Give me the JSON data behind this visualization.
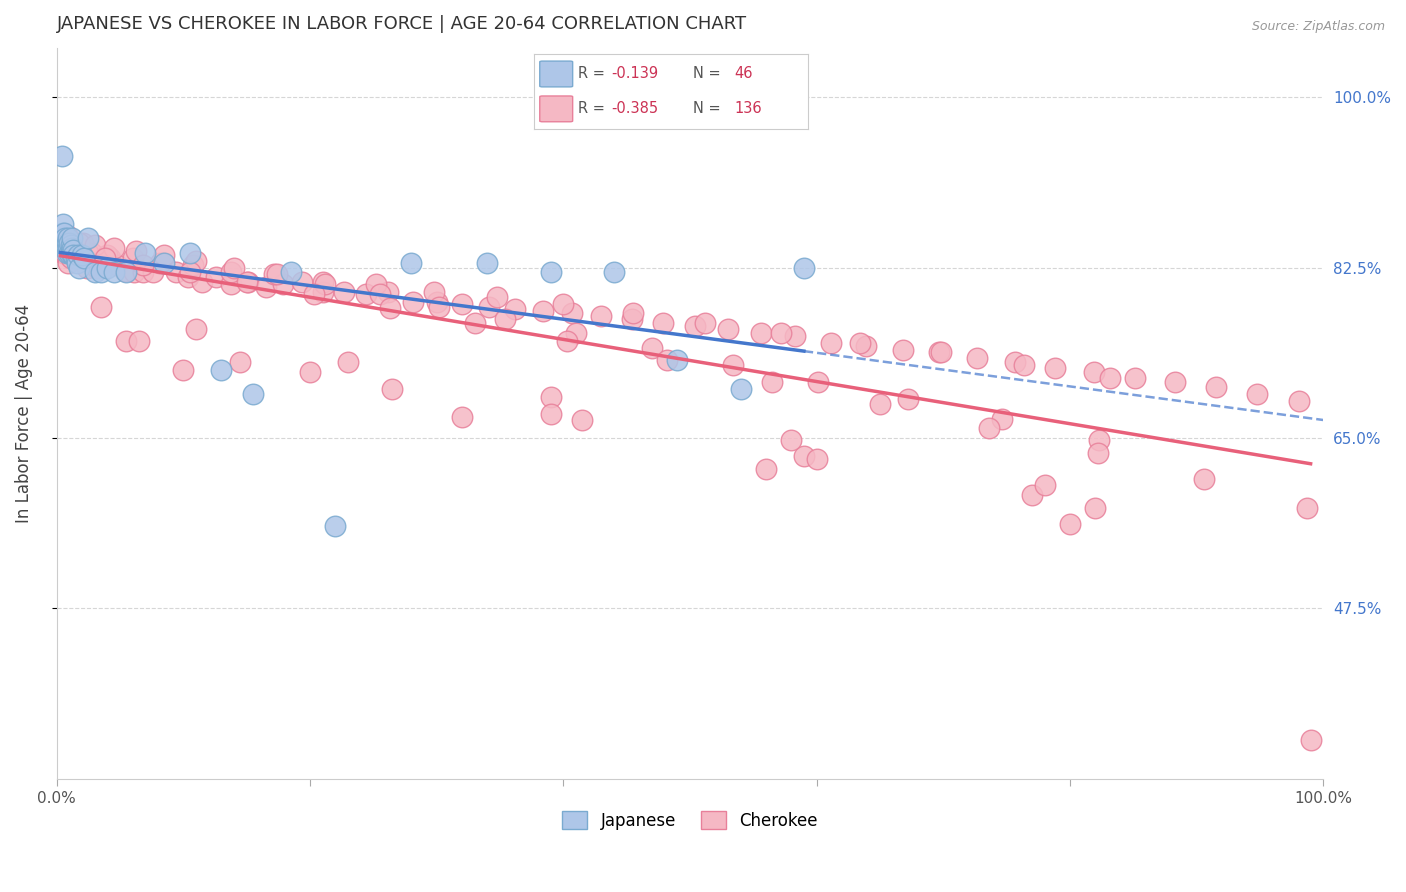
{
  "title": "JAPANESE VS CHEROKEE IN LABOR FORCE | AGE 20-64 CORRELATION CHART",
  "source": "Source: ZipAtlas.com",
  "ylabel": "In Labor Force | Age 20-64",
  "xlim": [
    0.0,
    1.0
  ],
  "ylim": [
    0.3,
    1.05
  ],
  "ytick_positions": [
    0.475,
    0.65,
    0.825,
    1.0
  ],
  "ytick_labels": [
    "47.5%",
    "65.0%",
    "82.5%",
    "100.0%"
  ],
  "background_color": "#ffffff",
  "grid_color": "#cccccc",
  "title_color": "#333333",
  "axis_label_color": "#444444",
  "tick_label_color_right": "#4477cc",
  "japanese_color": "#aec6e8",
  "cherokee_color": "#f5b8c4",
  "japanese_edge": "#7aaad0",
  "cherokee_edge": "#e8809a",
  "japanese_line_color": "#4477cc",
  "cherokee_line_color": "#e8607a",
  "japanese_x": [
    0.003,
    0.004,
    0.005,
    0.005,
    0.006,
    0.006,
    0.007,
    0.007,
    0.008,
    0.008,
    0.009,
    0.009,
    0.01,
    0.01,
    0.011,
    0.011,
    0.012,
    0.012,
    0.013,
    0.013,
    0.015,
    0.016,
    0.017,
    0.018,
    0.02,
    0.022,
    0.025,
    0.03,
    0.035,
    0.04,
    0.045,
    0.055,
    0.07,
    0.085,
    0.105,
    0.13,
    0.155,
    0.185,
    0.22,
    0.28,
    0.34,
    0.39,
    0.44,
    0.49,
    0.54,
    0.59
  ],
  "japanese_y": [
    0.855,
    0.94,
    0.86,
    0.87,
    0.85,
    0.86,
    0.845,
    0.855,
    0.84,
    0.85,
    0.845,
    0.855,
    0.84,
    0.85,
    0.848,
    0.84,
    0.845,
    0.855,
    0.843,
    0.838,
    0.835,
    0.83,
    0.838,
    0.825,
    0.838,
    0.835,
    0.855,
    0.82,
    0.82,
    0.825,
    0.82,
    0.82,
    0.84,
    0.83,
    0.84,
    0.72,
    0.695,
    0.82,
    0.56,
    0.83,
    0.83,
    0.82,
    0.82,
    0.73,
    0.7,
    0.825
  ],
  "cherokee_x": [
    0.003,
    0.005,
    0.007,
    0.009,
    0.011,
    0.013,
    0.015,
    0.018,
    0.021,
    0.024,
    0.028,
    0.032,
    0.037,
    0.042,
    0.048,
    0.054,
    0.061,
    0.068,
    0.076,
    0.085,
    0.094,
    0.104,
    0.115,
    0.126,
    0.138,
    0.151,
    0.165,
    0.179,
    0.194,
    0.21,
    0.227,
    0.244,
    0.262,
    0.281,
    0.3,
    0.32,
    0.341,
    0.362,
    0.384,
    0.407,
    0.43,
    0.454,
    0.479,
    0.504,
    0.53,
    0.556,
    0.583,
    0.611,
    0.639,
    0.668,
    0.697,
    0.727,
    0.757,
    0.788,
    0.819,
    0.851,
    0.883,
    0.915,
    0.948,
    0.981,
    0.012,
    0.025,
    0.04,
    0.06,
    0.082,
    0.108,
    0.138,
    0.172,
    0.21,
    0.252,
    0.298,
    0.348,
    0.4,
    0.455,
    0.512,
    0.572,
    0.634,
    0.698,
    0.764,
    0.832,
    0.008,
    0.018,
    0.03,
    0.045,
    0.063,
    0.085,
    0.11,
    0.14,
    0.174,
    0.212,
    0.255,
    0.302,
    0.354,
    0.41,
    0.47,
    0.534,
    0.601,
    0.672,
    0.746,
    0.823,
    0.015,
    0.038,
    0.068,
    0.105,
    0.15,
    0.203,
    0.263,
    0.33,
    0.403,
    0.482,
    0.565,
    0.65,
    0.736,
    0.822,
    0.906,
    0.987,
    0.055,
    0.145,
    0.265,
    0.415,
    0.59,
    0.77,
    0.035,
    0.11,
    0.23,
    0.39,
    0.58,
    0.78,
    0.065,
    0.2,
    0.39,
    0.6,
    0.82,
    0.1,
    0.32,
    0.56,
    0.8,
    0.99
  ],
  "cherokee_y": [
    0.855,
    0.84,
    0.84,
    0.83,
    0.835,
    0.84,
    0.835,
    0.84,
    0.85,
    0.825,
    0.84,
    0.825,
    0.83,
    0.835,
    0.828,
    0.822,
    0.82,
    0.82,
    0.82,
    0.83,
    0.82,
    0.815,
    0.81,
    0.815,
    0.808,
    0.81,
    0.805,
    0.808,
    0.81,
    0.8,
    0.8,
    0.798,
    0.8,
    0.79,
    0.79,
    0.788,
    0.785,
    0.782,
    0.78,
    0.778,
    0.775,
    0.772,
    0.768,
    0.765,
    0.762,
    0.758,
    0.755,
    0.748,
    0.745,
    0.74,
    0.738,
    0.732,
    0.728,
    0.722,
    0.718,
    0.712,
    0.708,
    0.702,
    0.695,
    0.688,
    0.84,
    0.84,
    0.838,
    0.835,
    0.83,
    0.828,
    0.82,
    0.818,
    0.81,
    0.808,
    0.8,
    0.795,
    0.788,
    0.778,
    0.768,
    0.758,
    0.748,
    0.738,
    0.725,
    0.712,
    0.858,
    0.85,
    0.848,
    0.845,
    0.842,
    0.838,
    0.832,
    0.825,
    0.818,
    0.808,
    0.798,
    0.785,
    0.772,
    0.758,
    0.742,
    0.725,
    0.708,
    0.69,
    0.67,
    0.648,
    0.84,
    0.835,
    0.828,
    0.82,
    0.81,
    0.798,
    0.784,
    0.768,
    0.75,
    0.73,
    0.708,
    0.685,
    0.66,
    0.635,
    0.608,
    0.578,
    0.75,
    0.728,
    0.7,
    0.668,
    0.632,
    0.592,
    0.785,
    0.762,
    0.728,
    0.692,
    0.648,
    0.602,
    0.75,
    0.718,
    0.675,
    0.628,
    0.578,
    0.72,
    0.672,
    0.618,
    0.562,
    0.34
  ]
}
